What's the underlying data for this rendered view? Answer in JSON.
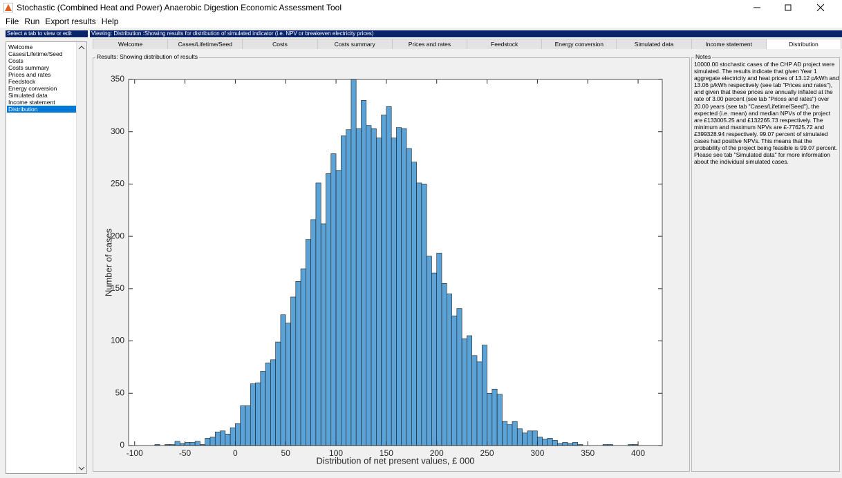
{
  "window_title": "Stochastic (Combined Heat and Power) Anaerobic Digestion Economic Assessment Tool",
  "menu": [
    "File",
    "Run",
    "Export results",
    "Help"
  ],
  "left_panel": {
    "header": "Select a tab to view or edit",
    "items": [
      "Welcome",
      "Cases/Lifetime/Seed",
      "Costs",
      "Costs summary",
      "Prices and rates",
      "Feedstock",
      "Energy conversion",
      "Simulated data",
      "Income statement",
      "Distribution"
    ]
  },
  "viewing_bar": "Viewing: Distribution  :Showing results for distribution of simulated indicator (i.e. NPV or breakeven electricity prices)",
  "tabs": [
    "Welcome",
    "Cases/Lifetime/Seed",
    "Costs",
    "Costs summary",
    "Prices and rates",
    "Feedstock",
    "Energy conversion",
    "Simulated data",
    "Income statement",
    "Distribution"
  ],
  "results_label": "Results: Showing distribution of results",
  "notes": {
    "label": "Notes",
    "text": "10000.00 stochastic cases of the CHP AD project were simulated. The results indicate that given Year 1 aggregate electricity and heat prices of  13.12 p/kWh and  13.06 p/kWh respectively (see tab \"Prices and rates\"), and given that these prices are annually inflated at the rate of   3.00 percent (see tab \"Prices and rates\") over  20.00 years (see tab \"Cases/Lifetime/Seed\"), the expected (i.e. mean) and median NPVs of the project are £133005.25 and £132265.73 respectively. The minimum and maximum NPVs are £-77625.72 and £399328.94 respectively. 99.07 percent of simulated cases had positive NPVs. This means that the probability of the project being feasible is 99.07 percent.  Please see tab \"Simulated data\" for more information about the individual simulated cases."
  },
  "chart_data": {
    "type": "histogram",
    "xlabel": "Distribution of net present values, £ 000",
    "ylabel": "Number of cases",
    "color": "#5ba3d6",
    "edge_color": "#1a1a1a",
    "xlim": [
      -106,
      424
    ],
    "ylim": [
      0,
      350
    ],
    "xticks": [
      -100,
      -50,
      0,
      50,
      100,
      150,
      200,
      250,
      300,
      350,
      400
    ],
    "yticks": [
      0,
      50,
      100,
      150,
      200,
      250,
      300,
      350
    ],
    "grid": false,
    "bins": [
      -80,
      -75,
      -70,
      -65,
      -60,
      -55,
      -50,
      -45,
      -40,
      -35,
      -30,
      -25,
      -20,
      -15,
      -10,
      -5,
      0,
      5,
      10,
      15,
      20,
      25,
      30,
      35,
      40,
      45,
      50,
      55,
      60,
      65,
      70,
      75,
      80,
      85,
      90,
      95,
      100,
      105,
      110,
      115,
      120,
      125,
      130,
      135,
      140,
      145,
      150,
      155,
      160,
      165,
      170,
      175,
      180,
      185,
      190,
      195,
      200,
      205,
      210,
      215,
      220,
      225,
      230,
      235,
      240,
      245,
      250,
      255,
      260,
      265,
      270,
      275,
      280,
      285,
      290,
      295,
      300,
      305,
      310,
      315,
      320,
      325,
      330,
      335,
      340,
      345,
      350,
      355,
      360,
      365,
      370,
      375,
      380,
      385,
      390,
      395,
      400
    ],
    "counts": [
      1,
      0,
      1,
      1,
      4,
      2,
      3,
      3,
      4,
      1,
      7,
      8,
      13,
      14,
      11,
      17,
      21,
      38,
      38,
      59,
      60,
      71,
      79,
      82,
      99,
      125,
      117,
      142,
      157,
      169,
      197,
      216,
      251,
      212,
      260,
      279,
      263,
      296,
      302,
      350,
      303,
      330,
      306,
      303,
      294,
      316,
      324,
      294,
      304,
      303,
      284,
      271,
      251,
      250,
      181,
      165,
      184,
      155,
      145,
      124,
      131,
      102,
      105,
      86,
      80,
      96,
      50,
      54,
      49,
      23,
      20,
      23,
      16,
      12,
      14,
      14,
      8,
      6,
      7,
      5,
      2,
      3,
      2,
      3,
      1,
      0,
      0,
      0,
      0,
      1,
      1,
      0,
      0,
      0,
      1,
      1
    ]
  }
}
